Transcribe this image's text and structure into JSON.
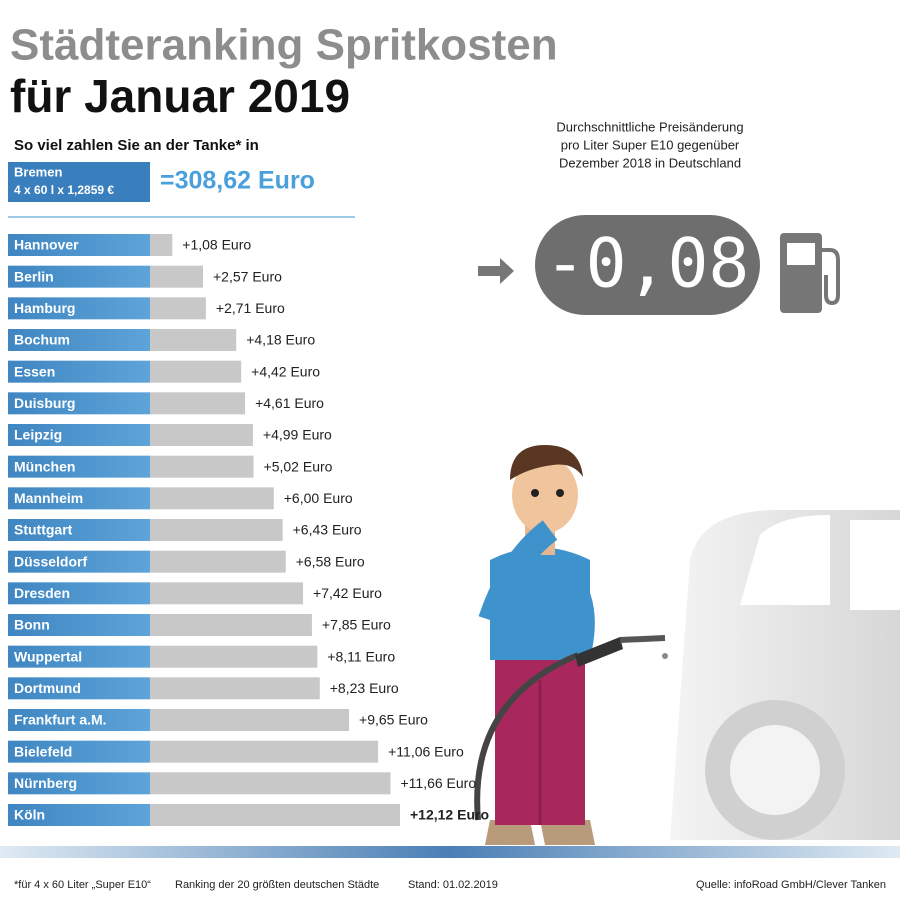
{
  "chart_data": {
    "type": "bar",
    "orientation": "horizontal",
    "title_lines": [
      "Städteranking Spritkosten",
      "für Januar 2019"
    ],
    "subtitle": "So viel zahlen Sie an der Tanke* in",
    "reference": {
      "city": "Bremen",
      "formula": "4 x 60 l x 1,2859 €",
      "total": "=308,62 Euro"
    },
    "categories": [
      "Hannover",
      "Berlin",
      "Hamburg",
      "Bochum",
      "Essen",
      "Duisburg",
      "Leipzig",
      "München",
      "Mannheim",
      "Stuttgart",
      "Düsseldorf",
      "Dresden",
      "Bonn",
      "Wuppertal",
      "Dortmund",
      "Frankfurt a.M.",
      "Bielefeld",
      "Nürnberg",
      "Köln"
    ],
    "values": [
      1.08,
      2.57,
      2.71,
      4.18,
      4.42,
      4.61,
      4.99,
      5.02,
      6.0,
      6.43,
      6.58,
      7.42,
      7.85,
      8.11,
      8.23,
      9.65,
      11.06,
      11.66,
      12.12
    ],
    "value_labels": [
      "+1,08 Euro",
      "+2,57 Euro",
      "+2,71 Euro",
      "+4,18 Euro",
      "+4,42 Euro",
      "+4,61 Euro",
      "+4,99 Euro",
      "+5,02 Euro",
      "+6,00 Euro",
      "+6,43 Euro",
      "+6,58 Euro",
      "+7,42 Euro",
      "+7,85 Euro",
      "+8,11 Euro",
      "+8,23 Euro",
      "+9,65 Euro",
      "+11,06 Euro",
      "+11,66 Euro",
      "+12,12 Euro"
    ],
    "color": "#c8c8c8",
    "label_color": "#4a93cc",
    "price_change": {
      "text_lines": [
        "Durchschnittliche Preisänderung",
        "pro Liter Super E10 gegenüber",
        "Dezember 2018 in Deutschland"
      ],
      "display": "-0,08"
    },
    "footnotes": [
      "*für 4 x 60 Liter „Super E10“",
      "Ranking der 20 größten deutschen Städte",
      "Stand: 01.02.2019",
      "Quelle: infoRoad GmbH/Clever Tanken"
    ]
  }
}
